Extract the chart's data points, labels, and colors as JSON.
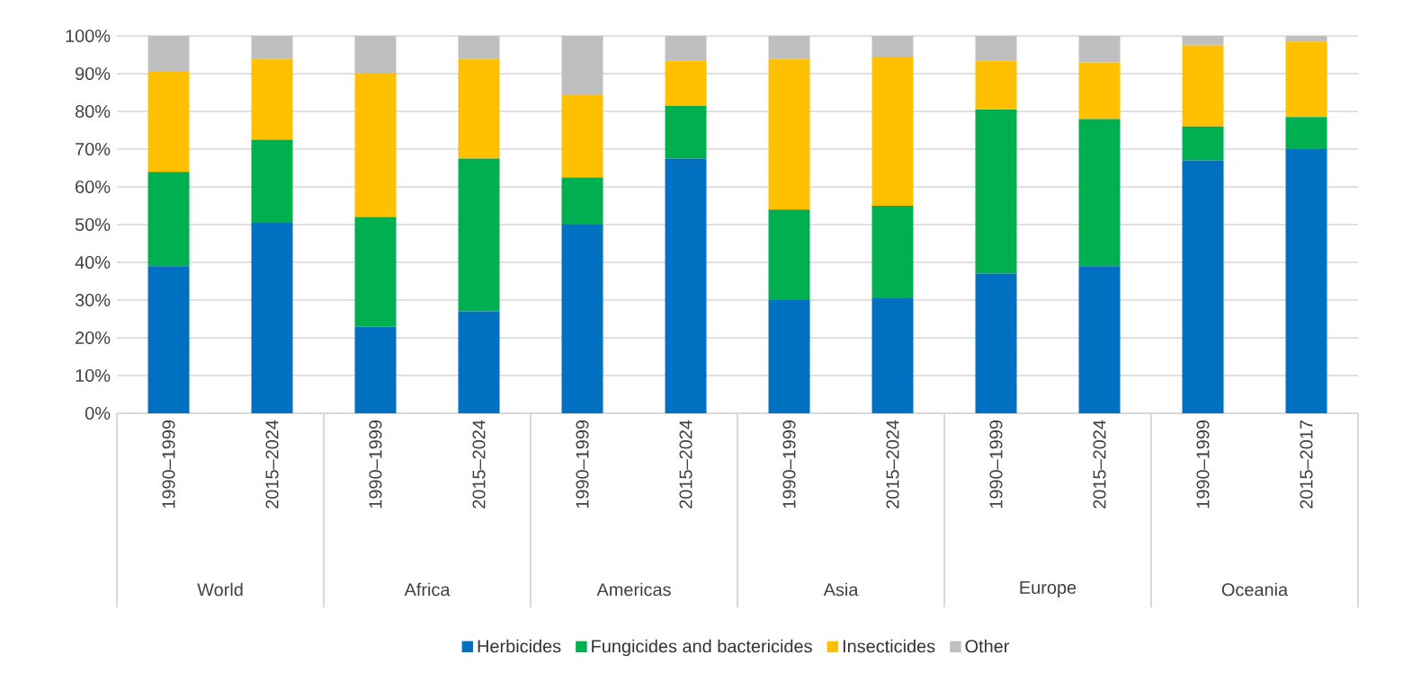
{
  "chart_data": {
    "type": "bar",
    "stacked": true,
    "grid": "y",
    "legend": "bottom",
    "categories": [
      "1990–1999",
      "2015–2024",
      "1990–1999",
      "2015–2024",
      "1990–1999",
      "2015–2024",
      "1990–1999",
      "2015–2024",
      "1990–1999",
      "2015–2024",
      "1990–1999",
      "2015–2017"
    ],
    "annotations": [
      "World",
      "Africa",
      "Americas",
      "Asia",
      "Europe",
      "Oceania"
    ],
    "ylim": [
      0,
      100
    ],
    "yticks": [
      {
        "value": 0,
        "label": "0%"
      },
      {
        "value": 10,
        "label": "10%"
      },
      {
        "value": 20,
        "label": "20%"
      },
      {
        "value": 30,
        "label": "30%"
      },
      {
        "value": 40,
        "label": "40%"
      },
      {
        "value": 50,
        "label": "50%"
      },
      {
        "value": 60,
        "label": "60%"
      },
      {
        "value": 70,
        "label": "70%"
      },
      {
        "value": 80,
        "label": "80%"
      },
      {
        "value": 90,
        "label": "90%"
      },
      {
        "value": 100,
        "label": "100%"
      }
    ],
    "series": [
      {
        "name": "Herbicides",
        "color": "#0070c0",
        "values": [
          39,
          50.5,
          23,
          27,
          50,
          67.5,
          30,
          30.5,
          37,
          39,
          67,
          70
        ]
      },
      {
        "name": "Fungicides and bactericides",
        "color": "#00b050",
        "values": [
          25,
          22,
          29,
          40.5,
          12.5,
          14,
          24,
          24.5,
          43.5,
          39,
          9,
          8.5
        ]
      },
      {
        "name": "Insecticides",
        "color": "#ffc000",
        "values": [
          26.5,
          21.5,
          38,
          26.5,
          22,
          12,
          40,
          39.5,
          13,
          15,
          21.5,
          20
        ]
      },
      {
        "name": "Other",
        "color": "#bfbfbf",
        "values": [
          9.5,
          6,
          10,
          6,
          15.5,
          6.5,
          6,
          5.5,
          6.5,
          7,
          2.5,
          1.5
        ]
      }
    ]
  }
}
